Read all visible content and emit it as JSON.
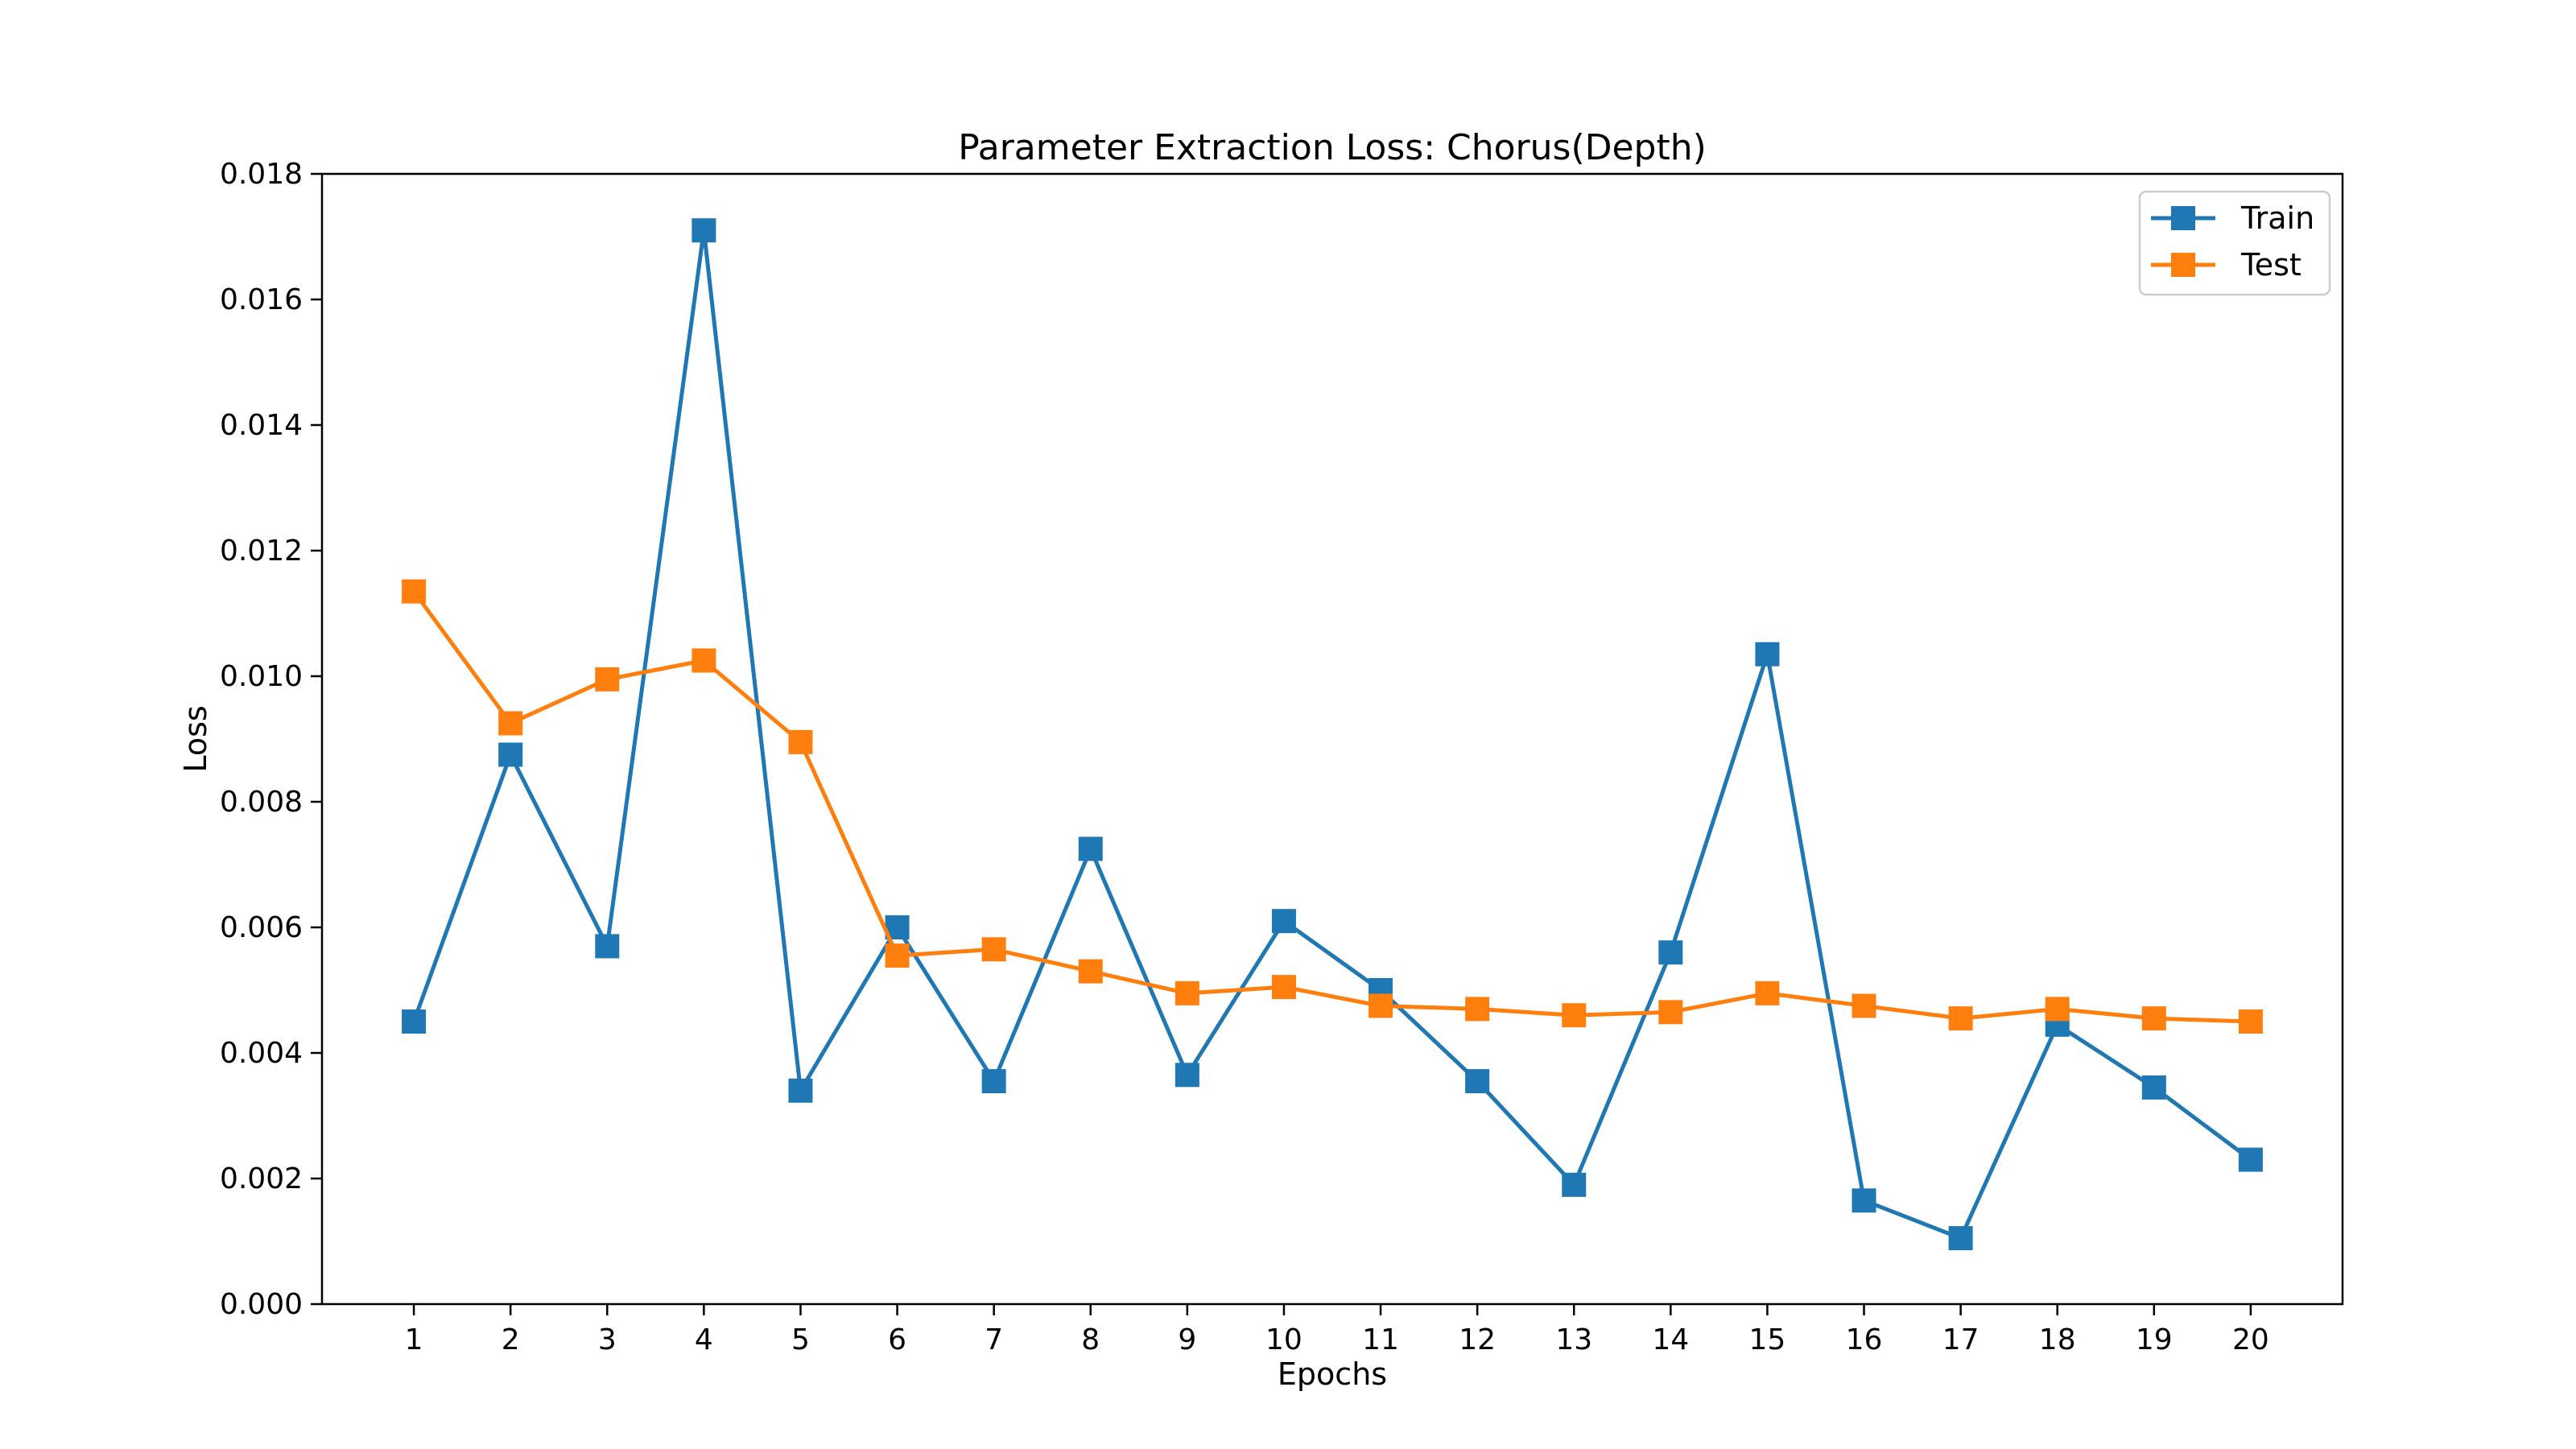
{
  "chart_data": {
    "type": "line",
    "title": "Parameter Extraction Loss: Chorus(Depth)",
    "xlabel": "Epochs",
    "ylabel": "Loss",
    "x": [
      1,
      2,
      3,
      4,
      5,
      6,
      7,
      8,
      9,
      10,
      11,
      12,
      13,
      14,
      15,
      16,
      17,
      18,
      19,
      20
    ],
    "x_ticks": [
      "1",
      "2",
      "3",
      "4",
      "5",
      "6",
      "7",
      "8",
      "9",
      "10",
      "11",
      "12",
      "13",
      "14",
      "15",
      "16",
      "17",
      "18",
      "19",
      "20"
    ],
    "xlim": [
      0.05,
      20.95
    ],
    "ylim": [
      0,
      0.018
    ],
    "y_ticks": [
      "0.000",
      "0.002",
      "0.004",
      "0.006",
      "0.008",
      "0.010",
      "0.012",
      "0.014",
      "0.016",
      "0.018"
    ],
    "y_tick_values": [
      0,
      0.002,
      0.004,
      0.006,
      0.008,
      0.01,
      0.012,
      0.014,
      0.016,
      0.018
    ],
    "grid": false,
    "legend": "top-right",
    "series": [
      {
        "name": "Train",
        "color": "#1f77b4",
        "marker": "square",
        "values": [
          0.0045,
          0.00875,
          0.0057,
          0.0171,
          0.0034,
          0.006,
          0.00355,
          0.00725,
          0.00365,
          0.0061,
          0.005,
          0.00355,
          0.0019,
          0.0056,
          0.01035,
          0.00165,
          0.00105,
          0.00445,
          0.00345,
          0.0023
        ]
      },
      {
        "name": "Test",
        "color": "#ff7f0e",
        "marker": "square",
        "values": [
          0.01135,
          0.00925,
          0.00995,
          0.01025,
          0.00895,
          0.00555,
          0.00565,
          0.0053,
          0.00495,
          0.00505,
          0.00475,
          0.0047,
          0.0046,
          0.00465,
          0.00495,
          0.00475,
          0.00455,
          0.0047,
          0.00455,
          0.0045
        ]
      }
    ]
  }
}
